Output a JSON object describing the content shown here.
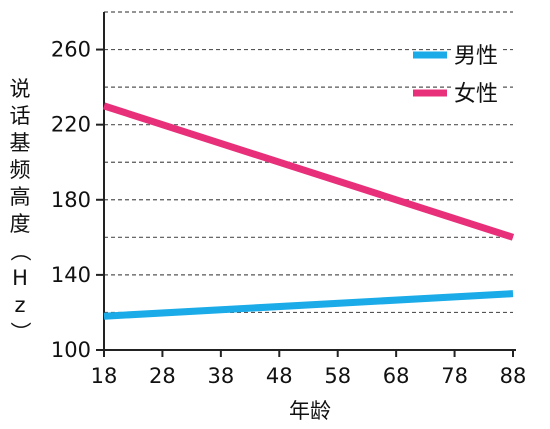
{
  "chart_data": {
    "type": "line",
    "title": "",
    "xlabel": "年龄",
    "ylabel": "说话基频高度（Hz）",
    "x": [
      18,
      88
    ],
    "xticks": [
      "18",
      "28",
      "38",
      "48",
      "58",
      "68",
      "78",
      "88"
    ],
    "xlim": [
      18,
      88
    ],
    "yticks": [
      "100",
      "140",
      "180",
      "220",
      "260"
    ],
    "ylim": [
      100,
      280
    ],
    "grid": "horizontal dashed every 20 Hz",
    "legend_position": "top-right",
    "series": [
      {
        "name": "男性",
        "color": "#1aabe8",
        "values": [
          118,
          130
        ]
      },
      {
        "name": "女性",
        "color": "#e8307a",
        "values": [
          230,
          160
        ]
      }
    ]
  }
}
